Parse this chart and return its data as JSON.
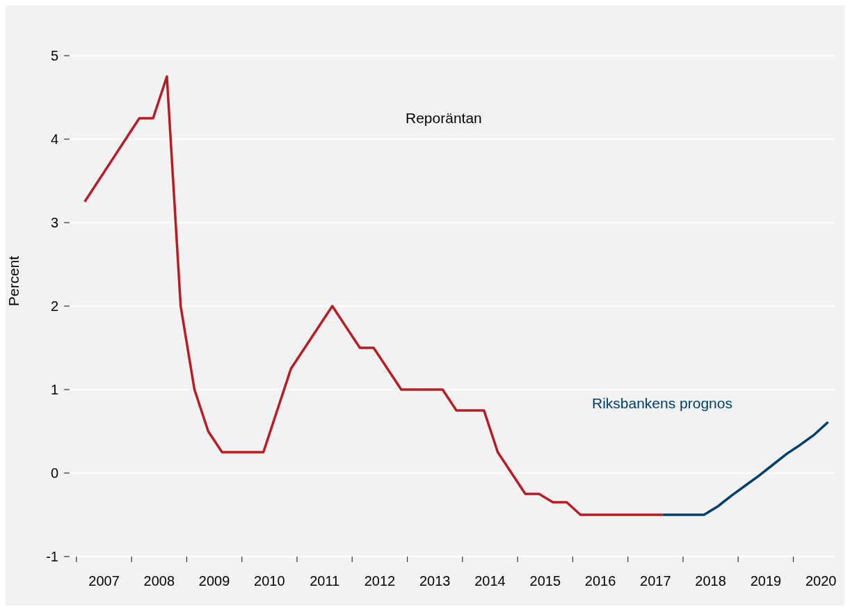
{
  "chart_data": {
    "type": "line",
    "ylabel": "Percent",
    "xlim": [
      2006.85,
      2020.75
    ],
    "ylim": [
      -1,
      5.6
    ],
    "annotations": [
      "Reporäntan"
    ],
    "yticks": [
      -1,
      0,
      1,
      2,
      3,
      4,
      5
    ],
    "xticks": [
      {
        "value": 2007,
        "label": null
      },
      {
        "value": 2007.5,
        "label": "2007"
      },
      {
        "value": 2008,
        "label": null
      },
      {
        "value": 2008.5,
        "label": "2008"
      },
      {
        "value": 2009,
        "label": null
      },
      {
        "value": 2009.5,
        "label": "2009"
      },
      {
        "value": 2010,
        "label": null
      },
      {
        "value": 2010.5,
        "label": "2010"
      },
      {
        "value": 2011,
        "label": null
      },
      {
        "value": 2011.5,
        "label": "2011"
      },
      {
        "value": 2012,
        "label": null
      },
      {
        "value": 2012.5,
        "label": "2012"
      },
      {
        "value": 2013,
        "label": null
      },
      {
        "value": 2013.5,
        "label": "2013"
      },
      {
        "value": 2014,
        "label": null
      },
      {
        "value": 2014.5,
        "label": "2014"
      },
      {
        "value": 2015,
        "label": null
      },
      {
        "value": 2015.5,
        "label": "2015"
      },
      {
        "value": 2016,
        "label": null
      },
      {
        "value": 2016.5,
        "label": "2016"
      },
      {
        "value": 2017,
        "label": null
      },
      {
        "value": 2017.5,
        "label": "2017"
      },
      {
        "value": 2018,
        "label": null
      },
      {
        "value": 2018.5,
        "label": "2018"
      },
      {
        "value": 2019,
        "label": null
      },
      {
        "value": 2019.5,
        "label": "2019"
      },
      {
        "value": 2020,
        "label": null
      },
      {
        "value": 2020.5,
        "label": "2020"
      }
    ],
    "grid": "y",
    "marker": "none",
    "line_style": "solid",
    "series": [
      {
        "color": "#b81c22",
        "x": [
          2007.15,
          2008.14,
          2008.39,
          2008.64,
          2008.89,
          2009.14,
          2009.39,
          2009.64,
          2010.39,
          2010.89,
          2011.64,
          2012.14,
          2012.39,
          2012.89,
          2013.64,
          2013.89,
          2014.39,
          2014.64,
          2015.14,
          2015.39,
          2015.64,
          2015.89,
          2016.14,
          2017.63
        ],
        "values": [
          3.25,
          4.25,
          4.25,
          4.75,
          2.0,
          1.0,
          0.5,
          0.25,
          0.25,
          1.25,
          2.0,
          1.5,
          1.5,
          1.0,
          1.0,
          0.75,
          0.75,
          0.25,
          -0.25,
          -0.25,
          -0.35,
          -0.35,
          -0.5,
          -0.5
        ]
      },
      {
        "name": "Riksbankens prognos",
        "color": "#003f6b",
        "x": [
          2017.63,
          2018.38,
          2018.63,
          2018.88,
          2019.13,
          2019.38,
          2019.63,
          2019.88,
          2020.13,
          2020.38,
          2020.63
        ],
        "values": [
          -0.5,
          -0.5,
          -0.4,
          -0.27,
          -0.15,
          -0.03,
          0.1,
          0.23,
          0.34,
          0.46,
          0.61
        ]
      }
    ]
  }
}
